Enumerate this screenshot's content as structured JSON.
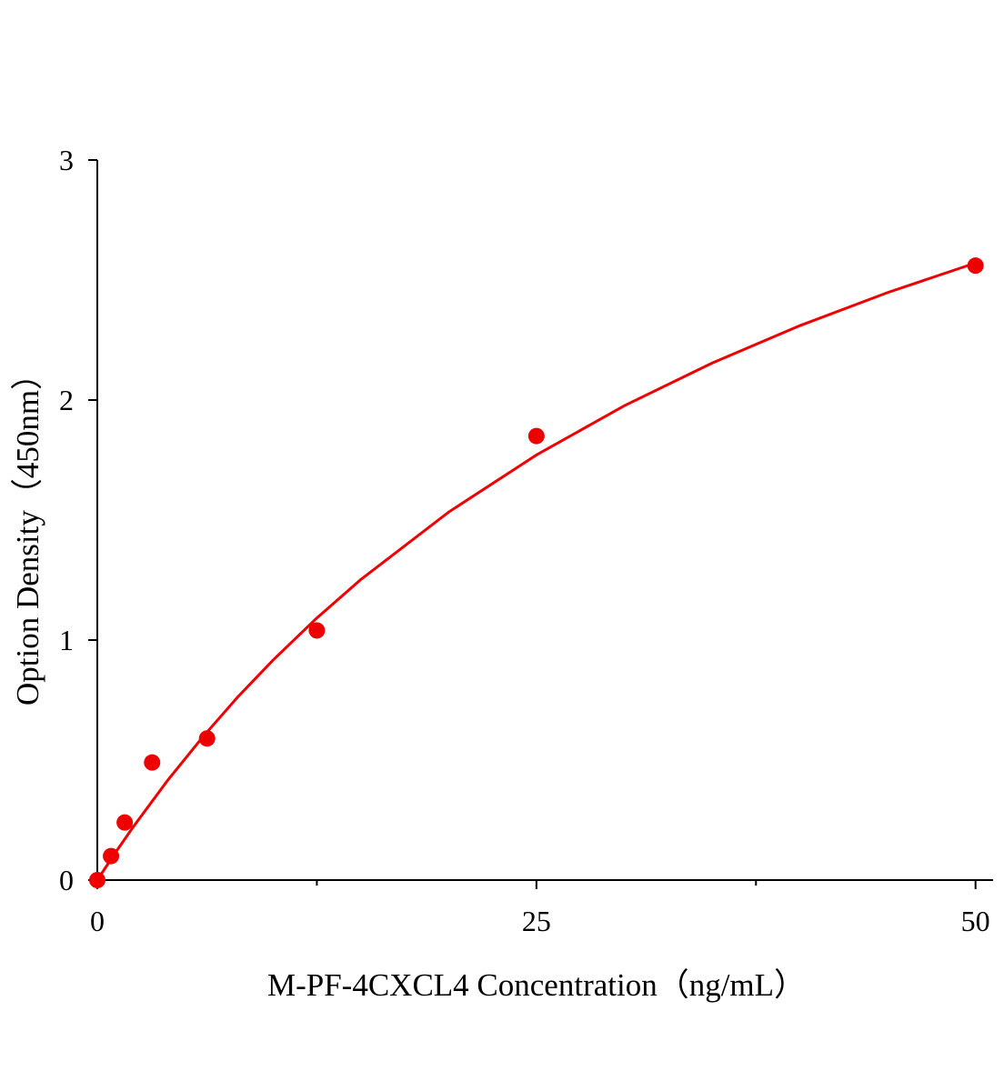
{
  "chart_data": {
    "type": "scatter",
    "x_label": "M-PF-4CXCL4 Concentration（ng/mL）",
    "y_label": "Option Density（450nm）",
    "points": {
      "color": "#ee0000",
      "x": [
        0,
        0.78,
        1.56,
        3.12,
        6.25,
        12.5,
        25,
        50
      ],
      "values": [
        0,
        0.1,
        0.24,
        0.49,
        0.59,
        1.04,
        1.85,
        2.56
      ]
    },
    "fit": {
      "color": "#ee0000",
      "x": [
        0,
        1,
        2,
        4,
        6,
        8,
        10,
        12.5,
        15,
        20,
        25,
        30,
        35,
        40,
        45,
        50
      ],
      "values": [
        0,
        0.111,
        0.217,
        0.415,
        0.596,
        0.763,
        0.916,
        1.092,
        1.252,
        1.533,
        1.771,
        1.976,
        2.154,
        2.31,
        2.448,
        2.571
      ]
    },
    "xlim": [
      0,
      51
    ],
    "xticks": [
      0,
      25,
      50
    ],
    "xminor_ticks": [
      12.5,
      37.5
    ],
    "ylim": [
      0,
      3
    ],
    "yticks": [
      0,
      1,
      2,
      3
    ]
  }
}
